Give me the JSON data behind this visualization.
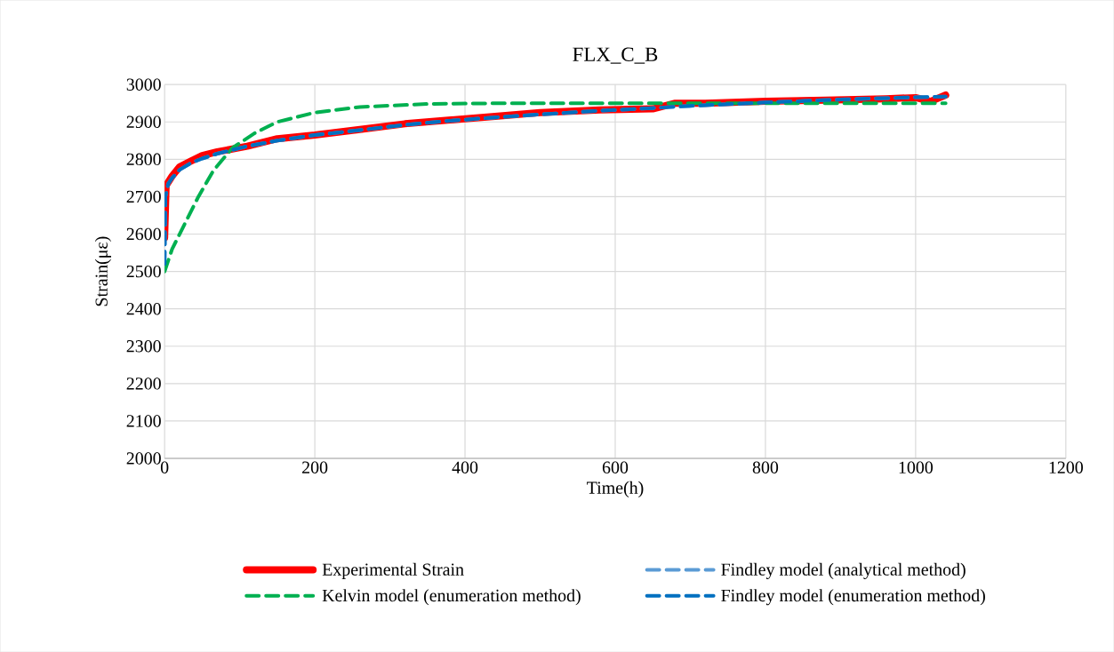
{
  "chart_data": {
    "type": "line",
    "title": "FLX_C_B",
    "xlabel": "Time(h)",
    "ylabel": "Strain(με)",
    "xlim": [
      0,
      1200
    ],
    "xticks": [
      0,
      200,
      400,
      600,
      800,
      1000,
      1200
    ],
    "ylim": [
      2000,
      3000
    ],
    "yticks": [
      2000,
      2100,
      2200,
      2300,
      2400,
      2500,
      2600,
      2700,
      2800,
      2900,
      3000
    ],
    "grid": true,
    "legend": "bottom",
    "marker": "none",
    "series": [
      {
        "name": "Experimental Strain",
        "color": "#ff0000",
        "line_style": "solid",
        "x": [
          0,
          2,
          10,
          20,
          35,
          50,
          70,
          110,
          150,
          200,
          260,
          320,
          380,
          440,
          500,
          580,
          650,
          680,
          720,
          800,
          880,
          960,
          1000,
          1020,
          1040
        ],
        "values": [
          2590,
          2730,
          2755,
          2780,
          2795,
          2810,
          2820,
          2835,
          2855,
          2865,
          2880,
          2895,
          2905,
          2915,
          2925,
          2932,
          2935,
          2950,
          2950,
          2955,
          2958,
          2962,
          2965,
          2955,
          2972
        ]
      },
      {
        "name": "Findley model (analytical method)",
        "color": "#5b9bd5",
        "line_style": "dashed",
        "x": [
          0,
          1,
          5,
          10,
          20,
          35,
          50,
          70,
          110,
          150,
          200,
          260,
          320,
          380,
          440,
          500,
          580,
          650,
          700,
          800,
          900,
          1000,
          1040
        ],
        "values": [
          2520,
          2700,
          2735,
          2750,
          2772,
          2790,
          2802,
          2815,
          2835,
          2850,
          2865,
          2878,
          2892,
          2903,
          2912,
          2920,
          2930,
          2937,
          2943,
          2952,
          2960,
          2966,
          2968
        ]
      },
      {
        "name": "Kelvin model (enumeration method)",
        "color": "#00b050",
        "line_style": "dashed",
        "x": [
          0,
          10,
          25,
          45,
          65,
          90,
          120,
          150,
          200,
          260,
          350,
          450,
          600,
          800,
          1040
        ],
        "values": [
          2500,
          2560,
          2620,
          2700,
          2770,
          2830,
          2870,
          2900,
          2925,
          2940,
          2948,
          2950,
          2950,
          2950,
          2950
        ]
      },
      {
        "name": "Findley model (enumeration method)",
        "color": "#0070c0",
        "line_style": "dashed",
        "x": [
          0,
          1,
          5,
          10,
          20,
          35,
          50,
          70,
          110,
          150,
          200,
          260,
          320,
          380,
          440,
          500,
          580,
          650,
          700,
          800,
          900,
          1000,
          1040
        ],
        "values": [
          2520,
          2700,
          2735,
          2750,
          2772,
          2790,
          2802,
          2815,
          2835,
          2850,
          2865,
          2878,
          2892,
          2903,
          2912,
          2920,
          2930,
          2937,
          2943,
          2952,
          2960,
          2966,
          2968
        ]
      }
    ]
  }
}
